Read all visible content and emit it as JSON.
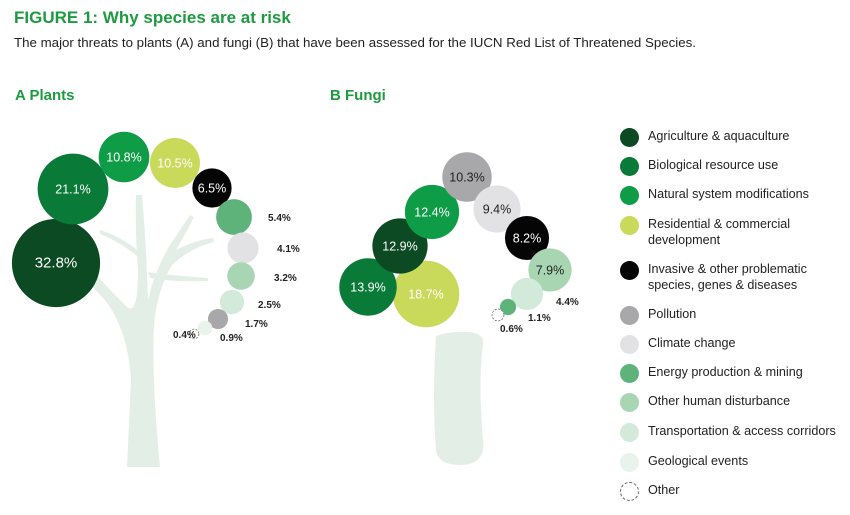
{
  "header": {
    "title": "FIGURE 1: Why species are at risk",
    "subtitle": "The major threats to plants (A) and fungi (B) that have been assessed for the IUCN Red List of Threatened Species."
  },
  "chart_data": [
    {
      "type": "bubble",
      "title": "A Plants",
      "unit": "%",
      "points": [
        {
          "category": "Agriculture & aquaculture",
          "value": 32.8,
          "label": "32.8%"
        },
        {
          "category": "Biological resource use",
          "value": 21.1,
          "label": "21.1%"
        },
        {
          "category": "Natural system modifications",
          "value": 10.8,
          "label": "10.8%"
        },
        {
          "category": "Residential & commercial development",
          "value": 10.5,
          "label": "10.5%"
        },
        {
          "category": "Invasive & other problematic species, genes & diseases",
          "value": 6.5,
          "label": "6.5%"
        },
        {
          "category": "Energy production & mining",
          "value": 5.4,
          "label": "5.4%"
        },
        {
          "category": "Climate change",
          "value": 4.1,
          "label": "4.1%"
        },
        {
          "category": "Other human disturbance",
          "value": 3.2,
          "label": "3.2%"
        },
        {
          "category": "Transportation & access corridors",
          "value": 2.5,
          "label": "2.5%"
        },
        {
          "category": "Pollution",
          "value": 1.7,
          "label": "1.7%"
        },
        {
          "category": "Geological events",
          "value": 0.9,
          "label": "0.9%"
        },
        {
          "category": "Other",
          "value": 0.4,
          "label": "0.4%"
        }
      ]
    },
    {
      "type": "bubble",
      "title": "B Fungi",
      "unit": "%",
      "points": [
        {
          "category": "Residential & commercial development",
          "value": 18.7,
          "label": "18.7%"
        },
        {
          "category": "Biological resource use",
          "value": 13.9,
          "label": "13.9%"
        },
        {
          "category": "Agriculture & aquaculture",
          "value": 12.9,
          "label": "12.9%"
        },
        {
          "category": "Natural system modifications",
          "value": 12.4,
          "label": "12.4%"
        },
        {
          "category": "Pollution",
          "value": 10.3,
          "label": "10.3%"
        },
        {
          "category": "Climate change",
          "value": 9.4,
          "label": "9.4%"
        },
        {
          "category": "Invasive & other problematic species, genes & diseases",
          "value": 8.2,
          "label": "8.2%"
        },
        {
          "category": "Other human disturbance",
          "value": 7.9,
          "label": "7.9%"
        },
        {
          "category": "Transportation & access corridors",
          "value": 4.4,
          "label": "4.4%"
        },
        {
          "category": "Energy production & mining",
          "value": 1.1,
          "label": "1.1%"
        },
        {
          "category": "Other",
          "value": 0.6,
          "label": "0.6%"
        }
      ]
    }
  ],
  "legend": {
    "position": "right",
    "items": [
      {
        "label": "Agriculture & aquaculture",
        "color": "#0b4a22"
      },
      {
        "label": "Biological resource use",
        "color": "#0a7a38"
      },
      {
        "label": "Natural system modifications",
        "color": "#0e9c47"
      },
      {
        "label": "Residential & commercial development",
        "color": "#c9d959"
      },
      {
        "label": "Invasive & other problematic species, genes & diseases",
        "color": "#050505"
      },
      {
        "label": "Pollution",
        "color": "#a8a8aa"
      },
      {
        "label": "Climate change",
        "color": "#e2e2e4"
      },
      {
        "label": "Energy production & mining",
        "color": "#5db37a"
      },
      {
        "label": "Other human disturbance",
        "color": "#a8d6b3"
      },
      {
        "label": "Transportation & access corridors",
        "color": "#d3eadb"
      },
      {
        "label": "Geological events",
        "color": "#e8f3ec"
      },
      {
        "label": "Other",
        "color": "#ffffff"
      }
    ]
  },
  "colors": {
    "title": "#1e9a40",
    "tree": "#e3efe6"
  }
}
